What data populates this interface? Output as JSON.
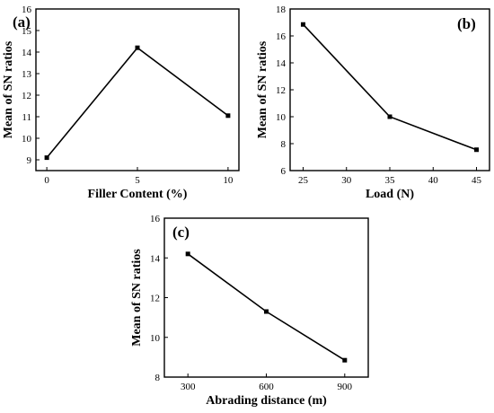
{
  "chart_data": [
    {
      "id": "a",
      "type": "line",
      "panel_label": "(a)",
      "xlabel": "Filler Content (%)",
      "ylabel": "Mean of SN ratios",
      "x": [
        0,
        5,
        10
      ],
      "values": [
        9.1,
        14.2,
        11.05
      ],
      "xticks": [
        0,
        5,
        10
      ],
      "yticks": [
        9,
        10,
        11,
        12,
        13,
        14,
        15,
        16
      ],
      "xlim": [
        -0.6,
        10.6
      ],
      "ylim": [
        8.5,
        16
      ],
      "grid": false,
      "marker": "square"
    },
    {
      "id": "b",
      "type": "line",
      "panel_label": "(b)",
      "xlabel": "Load (N)",
      "ylabel": "Mean of SN ratios",
      "x": [
        25,
        35,
        45
      ],
      "values": [
        16.85,
        10.0,
        7.55
      ],
      "xticks": [
        25,
        30,
        35,
        40,
        45
      ],
      "yticks": [
        6,
        8,
        10,
        12,
        14,
        16,
        18
      ],
      "xlim": [
        23.5,
        46.5
      ],
      "ylim": [
        6,
        18
      ],
      "grid": false,
      "marker": "square"
    },
    {
      "id": "c",
      "type": "line",
      "panel_label": "(c)",
      "xlabel": "Abrading distance (m)",
      "ylabel": "Mean of SN ratios",
      "x": [
        300,
        600,
        900
      ],
      "values": [
        14.2,
        11.3,
        8.85
      ],
      "xticks": [
        300,
        600,
        900
      ],
      "yticks": [
        8,
        10,
        12,
        14,
        16
      ],
      "xlim": [
        210,
        990
      ],
      "ylim": [
        8,
        16
      ],
      "grid": false,
      "marker": "square"
    }
  ]
}
